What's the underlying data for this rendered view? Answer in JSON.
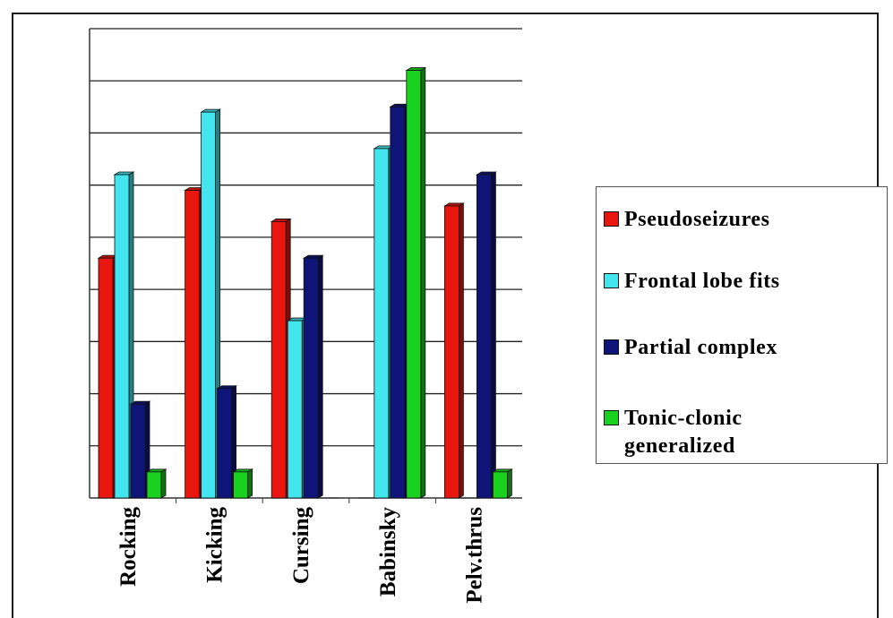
{
  "chart_data": {
    "type": "bar",
    "categories": [
      "Rocking",
      "Kicking",
      "Cursing",
      "Babinsky",
      "Pelv.thrus"
    ],
    "series": [
      {
        "name": "Pseudoseizures",
        "color": "#e8160f",
        "values": [
          46,
          59,
          53,
          0,
          56
        ]
      },
      {
        "name": "Frontal lobe fits",
        "color": "#43e6ee",
        "values": [
          62,
          74,
          34,
          67,
          0
        ]
      },
      {
        "name": "Partial complex",
        "color": "#0f1578",
        "values": [
          18,
          21,
          46,
          75,
          62
        ]
      },
      {
        "name": "Tonic-clonic generalized",
        "color": "#18d21f",
        "values": [
          5,
          5,
          0,
          82,
          5
        ]
      }
    ],
    "ylim": [
      0,
      90
    ],
    "ytick_step": 10,
    "ytick_labels_shown": false,
    "grid": true,
    "legend_position": "right",
    "title": "",
    "xlabel": "",
    "ylabel": ""
  },
  "legend": {
    "items": [
      {
        "lines": [
          "Pseudoseizures"
        ]
      },
      {
        "lines": [
          "Frontal lobe fits"
        ]
      },
      {
        "lines": [
          "Partial complex"
        ]
      },
      {
        "lines": [
          "Tonic-clonic",
          "generalized"
        ]
      }
    ]
  }
}
